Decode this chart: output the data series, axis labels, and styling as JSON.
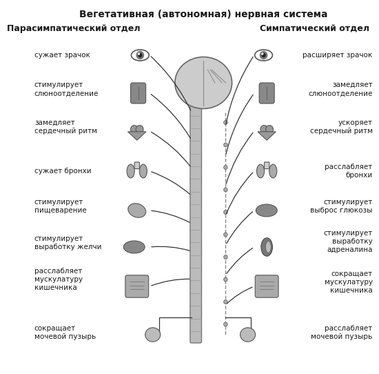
{
  "title": "Вегетативная (автономная) нервная система",
  "left_header": "Парасимпатический отдел",
  "right_header": "Симпатический отдел",
  "left_labels": [
    "сужает зрачок",
    "стимулирует\nслюноотделение",
    "замедляет\nсердечный ритм",
    "сужает бронхи",
    "стимулирует\nпищеварение",
    "стимулирует\nвыработку желчи",
    "расслабляет\nмускулатуру\nкишечника",
    "сокращает\nмочевой пузырь"
  ],
  "right_labels": [
    "расширяет зрачок",
    "замедляет\nслюноотделение",
    "ускоряет\nсердечный ритм",
    "расслабляет\nбронхи",
    "стимулирует\nвыброс глюкозы",
    "стимулирует\nвыработку\nадреналина",
    "сокращает\nмускулатуру\nкишечника",
    "расслабляет\nмочевой пузырь"
  ],
  "bg_color": "#ffffff",
  "text_color": "#1a1a1a",
  "organ_color": "#888888",
  "spine_color": "#666666",
  "brain_color": "#aaaaaa",
  "line_color": "#333333",
  "title_fontsize": 10,
  "header_fontsize": 9,
  "label_fontsize": 7.5,
  "fig_width": 5.5,
  "fig_height": 5.42,
  "dpi": 100
}
